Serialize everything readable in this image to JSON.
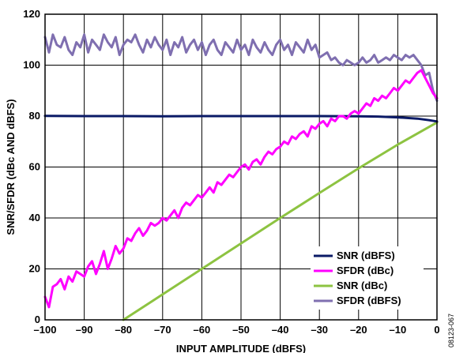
{
  "chart_data": {
    "type": "line",
    "xlabel": "INPUT AMPLITUDE (dBFS)",
    "ylabel": "SNR/SFDR (dBc AND dBFS)",
    "xlim": [
      -100,
      0
    ],
    "ylim": [
      0,
      120
    ],
    "xticks": [
      -100,
      -90,
      -80,
      -70,
      -60,
      -50,
      -40,
      -30,
      -20,
      -10,
      0
    ],
    "xtick_labels": [
      "–100",
      "–90",
      "–80",
      "–70",
      "–60",
      "–50",
      "–40",
      "–30",
      "–20",
      "–10",
      "0"
    ],
    "yticks": [
      0,
      20,
      40,
      60,
      80,
      100,
      120
    ],
    "ytick_labels": [
      "0",
      "20",
      "40",
      "60",
      "80",
      "100",
      "120"
    ],
    "grid": true,
    "legend_position": "bottom-right",
    "figure_id": "08123-067",
    "series": [
      {
        "name": "SNR (dBFS)",
        "color": "#0a1a66",
        "x": [
          -100,
          -90,
          -80,
          -70,
          -60,
          -50,
          -40,
          -30,
          -20,
          -15,
          -10,
          -5,
          -2,
          0
        ],
        "y": [
          80.1,
          80.0,
          80.0,
          79.9,
          80.0,
          80.0,
          80.0,
          80.0,
          79.9,
          79.8,
          79.5,
          79.0,
          78.4,
          77.9
        ]
      },
      {
        "name": "SFDR (dBc)",
        "color": "#ff00ff",
        "x": [
          -100,
          -99,
          -98,
          -97,
          -96,
          -95,
          -94,
          -93,
          -92,
          -91,
          -90,
          -89,
          -88,
          -87,
          -86,
          -85,
          -84,
          -83,
          -82,
          -81,
          -80,
          -79,
          -78,
          -77,
          -76,
          -75,
          -74,
          -73,
          -72,
          -71,
          -70,
          -69,
          -68,
          -67,
          -66,
          -65,
          -64,
          -63,
          -62,
          -61,
          -60,
          -59,
          -58,
          -57,
          -56,
          -55,
          -54,
          -53,
          -52,
          -51,
          -50,
          -49,
          -48,
          -47,
          -46,
          -45,
          -44,
          -43,
          -42,
          -41,
          -40,
          -39,
          -38,
          -37,
          -36,
          -35,
          -34,
          -33,
          -32,
          -31,
          -30,
          -29,
          -28,
          -27,
          -26,
          -25,
          -24,
          -23,
          -22,
          -21,
          -20,
          -19,
          -18,
          -17,
          -16,
          -15,
          -14,
          -13,
          -12,
          -11,
          -10,
          -9,
          -8,
          -7,
          -6,
          -5,
          -4,
          -3,
          -2,
          -1,
          0
        ],
        "y": [
          9,
          5,
          13,
          14,
          16,
          12,
          17,
          15,
          19,
          18,
          17,
          21,
          23,
          18,
          22,
          27,
          20,
          24,
          29,
          26,
          28,
          32,
          31,
          34,
          36,
          33,
          35,
          38,
          37,
          38,
          40,
          39,
          41,
          43,
          40,
          44,
          46,
          45,
          47,
          49,
          48,
          50,
          52,
          50,
          54,
          53,
          55,
          57,
          56,
          58,
          60,
          61,
          59,
          62,
          63,
          61,
          64,
          66,
          65,
          67,
          68,
          70,
          69,
          72,
          71,
          73,
          74,
          72,
          76,
          75,
          77,
          78,
          76,
          79,
          78,
          80,
          80,
          79,
          81,
          82,
          81,
          83,
          85,
          84,
          87,
          86,
          88,
          87,
          89,
          91,
          90,
          92,
          94,
          93,
          95,
          97,
          98,
          95,
          92,
          89,
          87
        ]
      },
      {
        "name": "SNR (dBc)",
        "color": "#8dc341",
        "x": [
          -80,
          -70,
          -60,
          -50,
          -40,
          -30,
          -20,
          -10,
          0
        ],
        "y": [
          0,
          10,
          20,
          30,
          40,
          49.8,
          59.5,
          68.8,
          77.5
        ]
      },
      {
        "name": "SFDR (dBFS)",
        "color": "#7f6fb0",
        "x": [
          -100,
          -99,
          -98,
          -97,
          -96,
          -95,
          -94,
          -93,
          -92,
          -91,
          -90,
          -89,
          -88,
          -87,
          -86,
          -85,
          -84,
          -83,
          -82,
          -81,
          -80,
          -79,
          -78,
          -77,
          -76,
          -75,
          -74,
          -73,
          -72,
          -71,
          -70,
          -69,
          -68,
          -67,
          -66,
          -65,
          -64,
          -63,
          -62,
          -61,
          -60,
          -59,
          -58,
          -57,
          -56,
          -55,
          -54,
          -53,
          -52,
          -51,
          -50,
          -49,
          -48,
          -47,
          -46,
          -45,
          -44,
          -43,
          -42,
          -41,
          -40,
          -39,
          -38,
          -37,
          -36,
          -35,
          -34,
          -33,
          -32,
          -31,
          -30,
          -29,
          -28,
          -27,
          -26,
          -25,
          -24,
          -23,
          -22,
          -21,
          -20,
          -19,
          -18,
          -17,
          -16,
          -15,
          -14,
          -13,
          -12,
          -11,
          -10,
          -9,
          -8,
          -7,
          -6,
          -5,
          -4,
          -3,
          -2,
          -1,
          0
        ],
        "y": [
          111,
          105,
          112,
          108,
          107,
          111,
          106,
          104,
          109,
          107,
          112,
          105,
          110,
          108,
          106,
          112,
          109,
          107,
          111,
          104,
          108,
          110,
          109,
          112,
          108,
          105,
          110,
          107,
          111,
          108,
          106,
          110,
          104,
          109,
          107,
          111,
          105,
          108,
          110,
          106,
          109,
          104,
          108,
          110,
          106,
          104,
          109,
          107,
          105,
          110,
          106,
          108,
          104,
          110,
          107,
          105,
          109,
          106,
          104,
          108,
          110,
          106,
          108,
          104,
          109,
          107,
          105,
          110,
          106,
          108,
          103,
          104,
          105,
          102,
          103,
          101,
          100,
          102,
          101,
          100,
          101,
          103,
          101,
          102,
          104,
          101,
          102,
          103,
          102,
          104,
          103,
          102,
          104,
          103,
          104,
          102,
          100,
          96,
          97,
          90,
          86
        ]
      }
    ]
  }
}
